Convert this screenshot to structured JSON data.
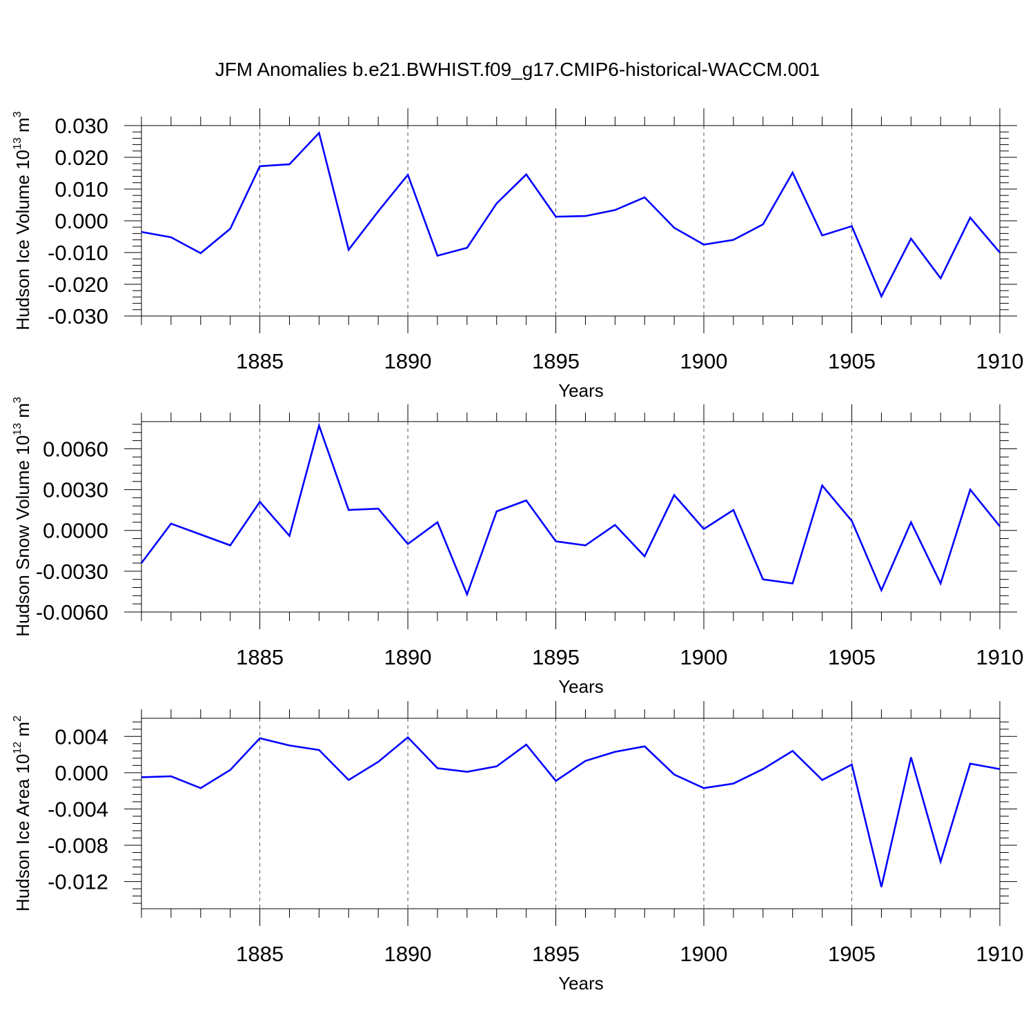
{
  "title": "JFM Anomalies b.e21.BWHIST.f09_g17.CMIP6-historical-WACCM.001",
  "style": {
    "line_color": "#0000ff",
    "grid_color": "#555555",
    "axis_color": "#000000"
  },
  "chart_data": [
    {
      "type": "line",
      "ylabel": {
        "text": "Hudson Ice Volume 10",
        "sup": "13",
        "unit": " m",
        "unit_sup": "3"
      },
      "xlabel": "Years",
      "xlim": [
        1881,
        1910
      ],
      "ylim": [
        -0.03,
        0.03
      ],
      "xticks": [
        1885,
        1890,
        1895,
        1900,
        1905,
        1910
      ],
      "yticks": [
        0.03,
        0.02,
        0.01,
        0.0,
        -0.01,
        -0.02,
        -0.03
      ],
      "ytick_labels": [
        "0.030",
        "0.020",
        "0.010",
        "0.000",
        "-0.010",
        "-0.020",
        "-0.030"
      ],
      "grid": "vertical dashed at major x ticks",
      "x": [
        1881,
        1882,
        1883,
        1884,
        1885,
        1886,
        1887,
        1888,
        1889,
        1890,
        1891,
        1892,
        1893,
        1894,
        1895,
        1896,
        1897,
        1898,
        1899,
        1900,
        1901,
        1902,
        1903,
        1904,
        1905,
        1906,
        1907,
        1908,
        1909,
        1910
      ],
      "values": [
        -0.0035,
        -0.0052,
        -0.0102,
        -0.0025,
        0.0172,
        0.0178,
        0.0277,
        -0.0091,
        0.003,
        0.0145,
        -0.011,
        -0.0085,
        0.0055,
        0.0146,
        0.0013,
        0.0015,
        0.0034,
        0.0074,
        -0.0022,
        -0.0075,
        -0.006,
        -0.0011,
        0.0152,
        -0.0046,
        -0.0017,
        -0.0238,
        -0.0056,
        -0.0181,
        0.001,
        -0.01
      ]
    },
    {
      "type": "line",
      "ylabel": {
        "text": "Hudson Snow Volume 10",
        "sup": "13",
        "unit": " m",
        "unit_sup": "3"
      },
      "xlabel": "Years",
      "xlim": [
        1881,
        1910
      ],
      "ylim": [
        -0.006,
        0.008
      ],
      "xticks": [
        1885,
        1890,
        1895,
        1900,
        1905,
        1910
      ],
      "yticks": [
        0.006,
        0.003,
        0.0,
        -0.003,
        -0.006
      ],
      "ytick_labels": [
        "0.0060",
        "0.0030",
        "0.0000",
        "-0.0030",
        "-0.0060"
      ],
      "grid": "vertical dashed at major x ticks",
      "x": [
        1881,
        1882,
        1883,
        1884,
        1885,
        1886,
        1887,
        1888,
        1889,
        1890,
        1891,
        1892,
        1893,
        1894,
        1895,
        1896,
        1897,
        1898,
        1899,
        1900,
        1901,
        1902,
        1903,
        1904,
        1905,
        1906,
        1907,
        1908,
        1909,
        1910
      ],
      "values": [
        -0.0024,
        0.0005,
        -0.0003,
        -0.0011,
        0.0021,
        -0.0004,
        0.0077,
        0.0015,
        0.0016,
        -0.001,
        0.0006,
        -0.0047,
        0.0014,
        0.0022,
        -0.0008,
        -0.0011,
        0.0004,
        -0.0019,
        0.0026,
        0.0001,
        0.0015,
        -0.0036,
        -0.0039,
        0.0033,
        0.0007,
        -0.0044,
        0.0006,
        -0.0039,
        0.003,
        0.0003
      ]
    },
    {
      "type": "line",
      "ylabel": {
        "text": "Hudson Ice Area 10",
        "sup": "12",
        "unit": " m",
        "unit_sup": "2"
      },
      "xlabel": "Years",
      "xlim": [
        1881,
        1910
      ],
      "ylim": [
        -0.015,
        0.006
      ],
      "xticks": [
        1885,
        1890,
        1895,
        1900,
        1905,
        1910
      ],
      "yticks": [
        0.004,
        0.0,
        -0.004,
        -0.008,
        -0.012
      ],
      "ytick_labels": [
        "0.004",
        "0.000",
        "-0.004",
        "-0.008",
        "-0.012"
      ],
      "grid": "vertical dashed at major x ticks",
      "x": [
        1881,
        1882,
        1883,
        1884,
        1885,
        1886,
        1887,
        1888,
        1889,
        1890,
        1891,
        1892,
        1893,
        1894,
        1895,
        1896,
        1897,
        1898,
        1899,
        1900,
        1901,
        1902,
        1903,
        1904,
        1905,
        1906,
        1907,
        1908,
        1909,
        1910
      ],
      "values": [
        -0.0005,
        -0.0004,
        -0.0017,
        0.0003,
        0.0038,
        0.003,
        0.0025,
        -0.0008,
        0.0012,
        0.0039,
        0.0005,
        0.0001,
        0.0007,
        0.0031,
        -0.0009,
        0.0013,
        0.0023,
        0.0029,
        -0.0002,
        -0.0017,
        -0.0012,
        0.0004,
        0.0024,
        -0.0008,
        0.0009,
        -0.0126,
        0.0017,
        -0.0098,
        0.001,
        0.0004
      ]
    }
  ]
}
